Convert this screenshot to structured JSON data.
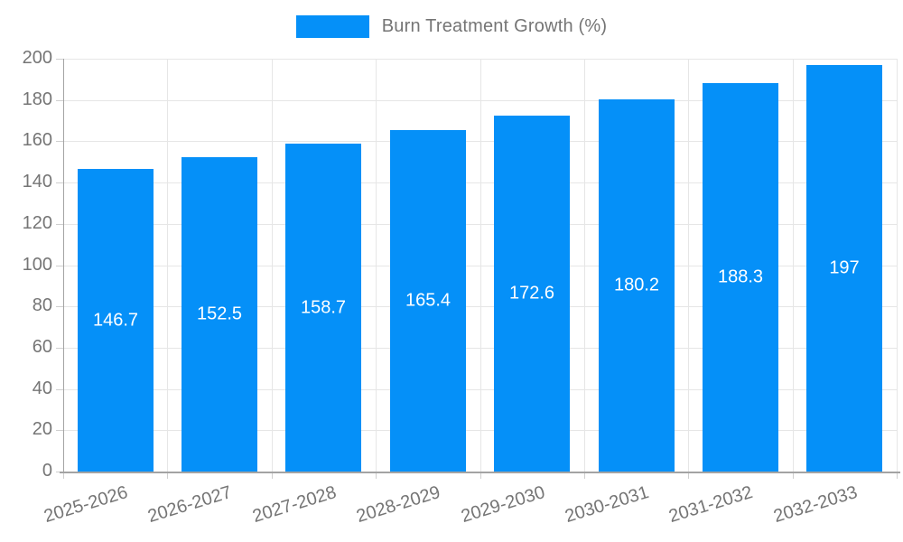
{
  "legend": {
    "label": "Burn Treatment Growth (%)",
    "swatch_color": "#0590f8"
  },
  "chart_data": {
    "type": "bar",
    "title": "Burn Treatment Growth (%)",
    "categories": [
      "2025-2026",
      "2026-2027",
      "2027-2028",
      "2028-2029",
      "2029-2030",
      "2030-2031",
      "2031-2032",
      "2032-2033"
    ],
    "values": [
      146.7,
      152.5,
      158.7,
      165.4,
      172.6,
      180.2,
      188.3,
      197
    ],
    "value_labels": [
      "146.7",
      "152.5",
      "158.7",
      "165.4",
      "172.6",
      "180.2",
      "188.3",
      "197"
    ],
    "xlabel": "",
    "ylabel": "",
    "ylim": [
      0,
      200
    ],
    "ytick_step": 20,
    "ytick_labels": [
      "0",
      "20",
      "40",
      "60",
      "80",
      "100",
      "120",
      "140",
      "160",
      "180",
      "200"
    ],
    "grid": true,
    "legend_position": "top",
    "colors": {
      "bar": "#0590f8",
      "bar_value_text": "#ffffff",
      "axis_text": "#757575",
      "gridline": "#e6e6e6",
      "axis_line": "#a3a3a3"
    }
  }
}
